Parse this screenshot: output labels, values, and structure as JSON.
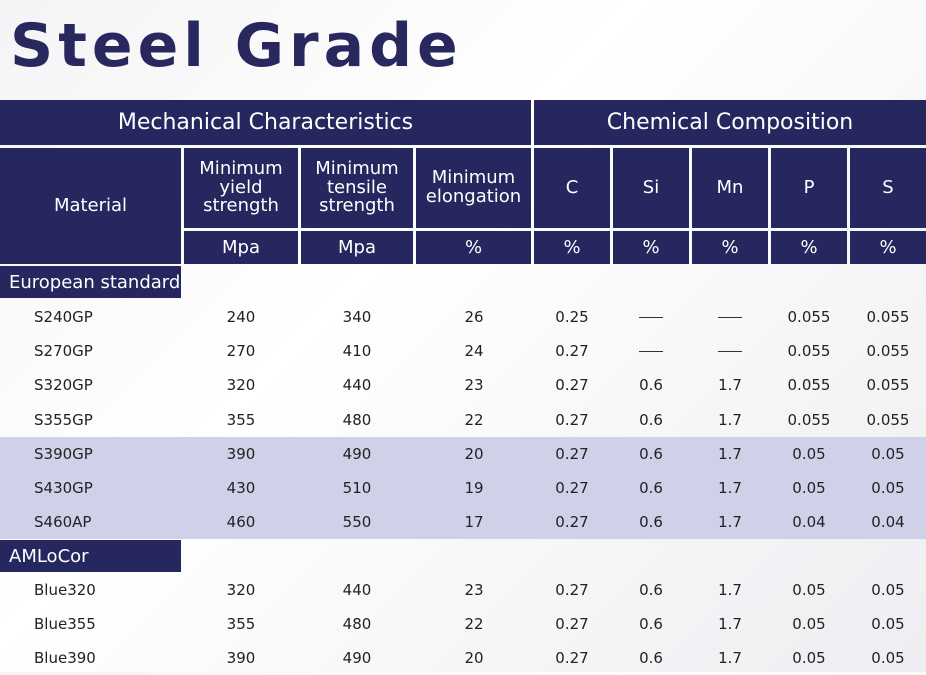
{
  "title": "Steel Grade",
  "header": {
    "mechanical_group": "Mechanical Characteristics",
    "chemical_group": "Chemical Composition",
    "columns": [
      {
        "label": "Material",
        "unit": ""
      },
      {
        "label": "Minimum\nyield\nstrength",
        "unit": "Mpa"
      },
      {
        "label": "Minimum\ntensile\nstrength",
        "unit": "Mpa"
      },
      {
        "label": "Minimum\nelongation",
        "unit": "%"
      },
      {
        "label": "C",
        "unit": "%"
      },
      {
        "label": "Si",
        "unit": "%"
      },
      {
        "label": "Mn",
        "unit": "%"
      },
      {
        "label": "P",
        "unit": "%"
      },
      {
        "label": "S",
        "unit": "%"
      }
    ]
  },
  "sections": [
    {
      "label": "European standard",
      "rows": [
        {
          "material": "S240GP",
          "yield": "240",
          "tensile": "340",
          "elongation": "26",
          "c": "0.25",
          "si": "—",
          "mn": "—",
          "p": "0.055",
          "s": "0.055",
          "shaded": false
        },
        {
          "material": "S270GP",
          "yield": "270",
          "tensile": "410",
          "elongation": "24",
          "c": "0.27",
          "si": "—",
          "mn": "—",
          "p": "0.055",
          "s": "0.055",
          "shaded": false
        },
        {
          "material": "S320GP",
          "yield": "320",
          "tensile": "440",
          "elongation": "23",
          "c": "0.27",
          "si": "0.6",
          "mn": "1.7",
          "p": "0.055",
          "s": "0.055",
          "shaded": false
        },
        {
          "material": "S355GP",
          "yield": "355",
          "tensile": "480",
          "elongation": "22",
          "c": "0.27",
          "si": "0.6",
          "mn": "1.7",
          "p": "0.055",
          "s": "0.055",
          "shaded": false
        },
        {
          "material": "S390GP",
          "yield": "390",
          "tensile": "490",
          "elongation": "20",
          "c": "0.27",
          "si": "0.6",
          "mn": "1.7",
          "p": "0.05",
          "s": "0.05",
          "shaded": true
        },
        {
          "material": "S430GP",
          "yield": "430",
          "tensile": "510",
          "elongation": "19",
          "c": "0.27",
          "si": "0.6",
          "mn": "1.7",
          "p": "0.05",
          "s": "0.05",
          "shaded": true
        },
        {
          "material": "S460AP",
          "yield": "460",
          "tensile": "550",
          "elongation": "17",
          "c": "0.27",
          "si": "0.6",
          "mn": "1.7",
          "p": "0.04",
          "s": "0.04",
          "shaded": true
        }
      ]
    },
    {
      "label": "AMLoCor",
      "rows": [
        {
          "material": "Blue320",
          "yield": "320",
          "tensile": "440",
          "elongation": "23",
          "c": "0.27",
          "si": "0.6",
          "mn": "1.7",
          "p": "0.05",
          "s": "0.05",
          "shaded": false
        },
        {
          "material": "Blue355",
          "yield": "355",
          "tensile": "480",
          "elongation": "22",
          "c": "0.27",
          "si": "0.6",
          "mn": "1.7",
          "p": "0.05",
          "s": "0.05",
          "shaded": false
        },
        {
          "material": "Blue390",
          "yield": "390",
          "tensile": "490",
          "elongation": "20",
          "c": "0.27",
          "si": "0.6",
          "mn": "1.7",
          "p": "0.05",
          "s": "0.05",
          "shaded": false
        }
      ]
    }
  ],
  "colors": {
    "header_bg": "#27275f",
    "title": "#28285f",
    "shaded_row": "#d1d0e9"
  }
}
